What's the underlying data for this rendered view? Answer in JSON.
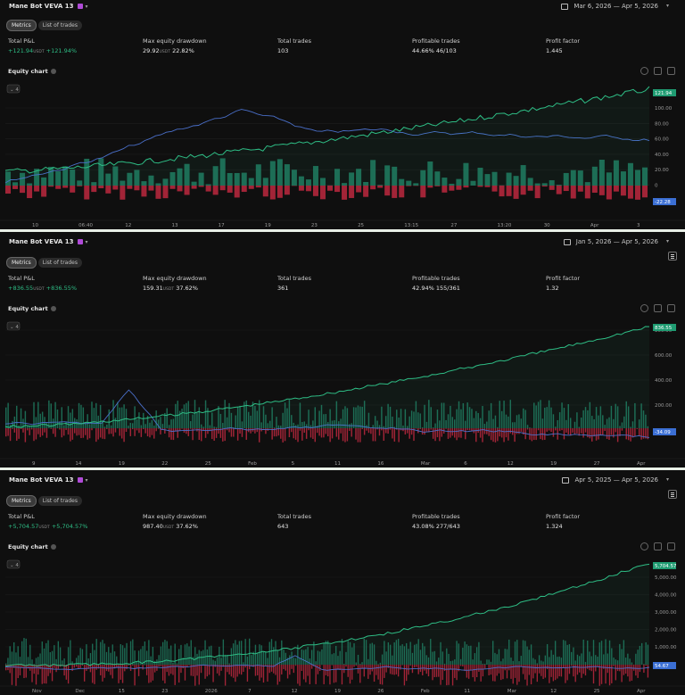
{
  "colors": {
    "profit": "#1f7a5f",
    "loss": "#b2273c",
    "equity": "#2ebd85",
    "price": "#4a6fc9",
    "last_badge": "#1f9c72",
    "price_badge": "#3b6fd4"
  },
  "panels": [
    {
      "bot_name": "Mane Bot VEVA 13",
      "date_range": "Mar 6, 2026 — Apr 5, 2026",
      "tabs": [
        "Metrics",
        "List of trades"
      ],
      "metrics": {
        "total_pnl_label": "Total P&L",
        "total_pnl_value": "+121.94",
        "total_pnl_unit": "USDT",
        "total_pnl_pct": "+121.94%",
        "drawdown_label": "Max equity drawdown",
        "drawdown_value": "29.92",
        "drawdown_unit": "USDT",
        "drawdown_pct": "22.82%",
        "trades_label": "Total trades",
        "trades_value": "103",
        "profitable_label": "Profitable trades",
        "profitable_pct": "44.66%",
        "profitable_ratio": "46/103",
        "factor_label": "Profit factor",
        "factor_value": "1.445"
      },
      "equity_title": "Equity chart",
      "collapse_label": "4",
      "last_value": "121.94",
      "price_value": "-22.28",
      "y_ticks": [
        "100.00",
        "80.00",
        "60.00",
        "40.00",
        "20.00",
        "0"
      ],
      "x_ticks": [
        "10",
        "06:40",
        "12",
        "13",
        "17",
        "19",
        "23",
        "25",
        "13:15",
        "27",
        "13:20",
        "30",
        "Apr",
        "3"
      ]
    },
    {
      "bot_name": "Mane Bot VEVA 13",
      "date_range": "Jan 5, 2026 — Apr 5, 2026",
      "tabs": [
        "Metrics",
        "List of trades"
      ],
      "metrics": {
        "total_pnl_label": "Total P&L",
        "total_pnl_value": "+836.55",
        "total_pnl_unit": "USDT",
        "total_pnl_pct": "+836.55%",
        "drawdown_label": "Max equity drawdown",
        "drawdown_value": "159.31",
        "drawdown_unit": "USDT",
        "drawdown_pct": "37.62%",
        "trades_label": "Total trades",
        "trades_value": "361",
        "profitable_label": "Profitable trades",
        "profitable_pct": "42.94%",
        "profitable_ratio": "155/361",
        "factor_label": "Profit factor",
        "factor_value": "1.32"
      },
      "equity_title": "Equity chart",
      "collapse_label": "4",
      "last_value": "836.55",
      "price_value": "-34.09",
      "y_ticks": [
        "800.00",
        "600.00",
        "400.00",
        "200.00"
      ],
      "x_ticks": [
        "9",
        "14",
        "19",
        "22",
        "25",
        "Feb",
        "5",
        "11",
        "16",
        "Mar",
        "6",
        "12",
        "19",
        "27",
        "Apr"
      ]
    },
    {
      "bot_name": "Mane Bot VEVA 13",
      "date_range": "Apr 5, 2025 — Apr 5, 2026",
      "tabs": [
        "Metrics",
        "List of trades"
      ],
      "metrics": {
        "total_pnl_label": "Total P&L",
        "total_pnl_value": "+5,704.57",
        "total_pnl_unit": "USDT",
        "total_pnl_pct": "+5,704.57%",
        "drawdown_label": "Max equity drawdown",
        "drawdown_value": "987.40",
        "drawdown_unit": "USDT",
        "drawdown_pct": "37.62%",
        "trades_label": "Total trades",
        "trades_value": "643",
        "profitable_label": "Profitable trades",
        "profitable_pct": "43.08%",
        "profitable_ratio": "277/643",
        "factor_label": "Profit factor",
        "factor_value": "1.324"
      },
      "equity_title": "Equity chart",
      "collapse_label": "4",
      "last_value": "5,704.57",
      "price_value": "54.67",
      "y_ticks": [
        "5,000.00",
        "4,000.00",
        "3,000.00",
        "2,000.00",
        "1,000.00"
      ],
      "x_ticks": [
        "Nov",
        "Dec",
        "15",
        "23",
        "2026",
        "7",
        "12",
        "19",
        "26",
        "Feb",
        "11",
        "Mar",
        "12",
        "25",
        "Apr"
      ]
    }
  ]
}
